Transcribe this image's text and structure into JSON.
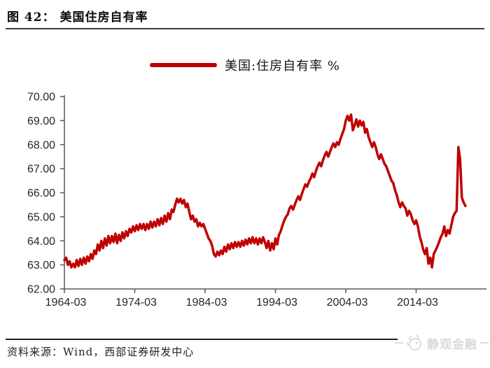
{
  "figure": {
    "title": "图 42： 美国住房自有率"
  },
  "legend": {
    "label": "美国:住房自有率 %"
  },
  "footer": {
    "source": "资料来源：Wind，西部证券研发中心",
    "watermark": "静观金融"
  },
  "chart_data": {
    "type": "line",
    "title": "美国住房自有率",
    "legend_entries": [
      "美国:住房自有率 %"
    ],
    "legend_position": "top-center",
    "grid": false,
    "line_color": "#c00000",
    "axis_color": "#595959",
    "label_color": "#262626",
    "xlabel": "",
    "ylabel": "",
    "ylim": [
      62,
      70
    ],
    "xlim": [
      1964.25,
      2024.25
    ],
    "y_ticks": [
      {
        "v": 70,
        "label": "70.00"
      },
      {
        "v": 69,
        "label": "69.00"
      },
      {
        "v": 68,
        "label": "68.00"
      },
      {
        "v": 67,
        "label": "67.00"
      },
      {
        "v": 66,
        "label": "66.00"
      },
      {
        "v": 65,
        "label": "65.00"
      },
      {
        "v": 64,
        "label": "64.00"
      },
      {
        "v": 63,
        "label": "63.00"
      },
      {
        "v": 62,
        "label": "62.00"
      }
    ],
    "x_ticks": [
      {
        "t": 1964.25,
        "label": "1964-03"
      },
      {
        "t": 1974.25,
        "label": "1974-03"
      },
      {
        "t": 1984.25,
        "label": "1984-03"
      },
      {
        "t": 1994.25,
        "label": "1994-03"
      },
      {
        "t": 2004.25,
        "label": "2004-03"
      },
      {
        "t": 2014.25,
        "label": "2014-03"
      }
    ],
    "series": {
      "name": "美国:住房自有率 %",
      "unit": "%",
      "start": 1964.25,
      "step": 0.25,
      "values": [
        63.2,
        63.3,
        63.0,
        63.15,
        62.9,
        63.05,
        62.9,
        63.2,
        62.95,
        63.25,
        63.0,
        63.3,
        63.05,
        63.35,
        63.15,
        63.45,
        63.25,
        63.6,
        63.45,
        63.85,
        63.6,
        64.0,
        63.7,
        64.1,
        63.8,
        64.2,
        63.9,
        64.2,
        63.95,
        64.3,
        63.9,
        64.25,
        64.0,
        64.35,
        64.1,
        64.4,
        64.2,
        64.5,
        64.35,
        64.6,
        64.4,
        64.65,
        64.45,
        64.7,
        64.5,
        64.7,
        64.45,
        64.7,
        64.5,
        64.8,
        64.55,
        64.8,
        64.6,
        64.9,
        64.65,
        64.95,
        64.7,
        65.05,
        64.8,
        65.15,
        64.9,
        65.3,
        65.2,
        65.5,
        65.75,
        65.6,
        65.75,
        65.55,
        65.7,
        65.4,
        65.55,
        65.2,
        64.9,
        65.05,
        64.8,
        64.9,
        64.6,
        64.75,
        64.6,
        64.7,
        64.5,
        64.3,
        64.1,
        64.0,
        63.8,
        63.45,
        63.35,
        63.55,
        63.4,
        63.6,
        63.45,
        63.75,
        63.55,
        63.85,
        63.65,
        63.9,
        63.7,
        63.95,
        63.75,
        63.95,
        63.75,
        64.0,
        63.8,
        64.05,
        63.85,
        64.1,
        63.9,
        64.15,
        63.9,
        64.1,
        63.85,
        64.1,
        63.9,
        64.15,
        63.95,
        63.7,
        64.0,
        63.6,
        63.9,
        63.65,
        64.1,
        63.85,
        64.25,
        64.4,
        64.65,
        64.85,
        65.0,
        65.1,
        65.35,
        65.45,
        65.3,
        65.5,
        65.7,
        65.85,
        65.7,
        65.95,
        66.15,
        66.35,
        66.25,
        66.45,
        66.6,
        66.8,
        66.65,
        66.9,
        67.1,
        67.25,
        67.1,
        67.35,
        67.55,
        67.7,
        67.5,
        67.7,
        67.9,
        68.05,
        67.9,
        68.1,
        68.0,
        68.25,
        68.45,
        68.65,
        69.0,
        69.2,
        69.0,
        69.25,
        68.6,
        68.8,
        69.05,
        68.75,
        69.0,
        68.8,
        68.95,
        68.5,
        68.65,
        68.3,
        68.1,
        67.9,
        68.1,
        67.9,
        67.6,
        67.4,
        67.6,
        67.4,
        67.2,
        67.1,
        66.9,
        66.7,
        66.5,
        66.4,
        66.1,
        65.9,
        65.6,
        65.4,
        65.6,
        65.45,
        65.35,
        65.05,
        65.25,
        65.1,
        64.85,
        64.7,
        64.85,
        64.6,
        64.2,
        63.95,
        63.65,
        63.45,
        63.7,
        63.05,
        63.3,
        62.9,
        63.45,
        63.6,
        63.75,
        63.95,
        64.15,
        64.3,
        64.6,
        64.2,
        64.45,
        64.3,
        64.65,
        65.0,
        65.15,
        65.25,
        67.9,
        67.4,
        65.8,
        65.6,
        65.45
      ]
    }
  }
}
